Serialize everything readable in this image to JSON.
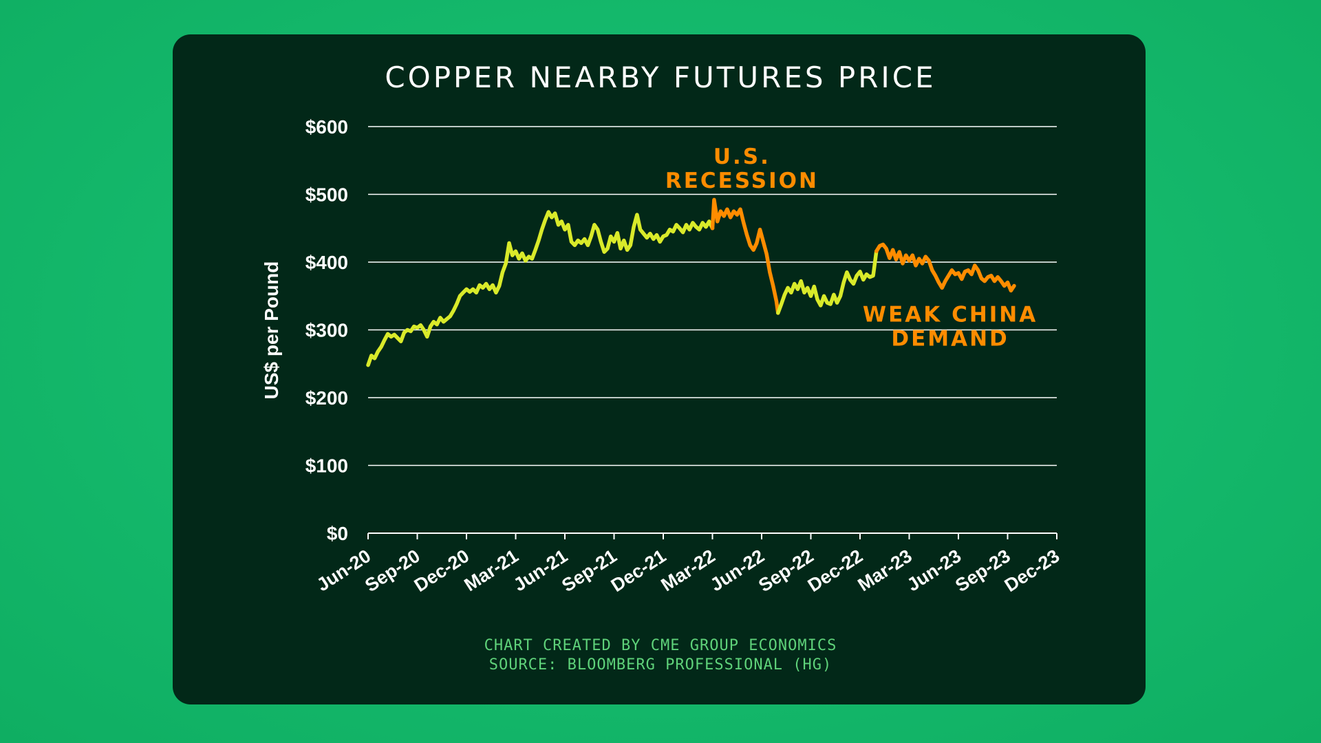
{
  "colors": {
    "background": "#14b86b",
    "panel": "#022818",
    "grid": "#ffffff",
    "text": "#ffffff",
    "rise_line": "#d9ea2a",
    "decline_line": "#ff8c00",
    "annotation": "#ff8c00",
    "credits": "#5fd27a"
  },
  "credits": {
    "line1": "CHART CREATED BY CME GROUP ECONOMICS",
    "line2": "SOURCE: BLOOMBERG PROFESSIONAL (HG)"
  },
  "chart_data": {
    "type": "line",
    "title": "COPPER NEARBY FUTURES PRICE",
    "xlabel": "",
    "ylabel": "US$ per Pound",
    "ylim": [
      0,
      600
    ],
    "yticks": [
      0,
      100,
      200,
      300,
      400,
      500,
      600
    ],
    "ytick_labels": [
      "$0",
      "$100",
      "$200",
      "$300",
      "$400",
      "$500",
      "$600"
    ],
    "xlim": [
      0,
      42
    ],
    "xticks": [
      0,
      3,
      6,
      9,
      12,
      15,
      18,
      21,
      24,
      27,
      30,
      33,
      36,
      39,
      42
    ],
    "xtick_labels": [
      "Jun-20",
      "Sep-20",
      "Dec-20",
      "Mar-21",
      "Jun-21",
      "Sep-21",
      "Dec-21",
      "Mar-22",
      "Jun-22",
      "Sep-22",
      "Dec-22",
      "Mar-23",
      "Jun-23",
      "Sep-23",
      "Dec-23"
    ],
    "grid": true,
    "legend": "none",
    "series": [
      {
        "points": [
          [
            0.0,
            248
          ],
          [
            0.2,
            262
          ],
          [
            0.4,
            258
          ],
          [
            0.6,
            268
          ],
          [
            0.8,
            275
          ],
          [
            1.0,
            285
          ],
          [
            1.2,
            294
          ],
          [
            1.4,
            290
          ],
          [
            1.6,
            293
          ],
          [
            1.8,
            288
          ],
          [
            2.0,
            283
          ],
          [
            2.2,
            296
          ],
          [
            2.4,
            300
          ],
          [
            2.6,
            298
          ],
          [
            2.8,
            305
          ],
          [
            3.0,
            303
          ],
          [
            3.2,
            307
          ],
          [
            3.4,
            300
          ],
          [
            3.6,
            290
          ],
          [
            3.8,
            305
          ],
          [
            4.0,
            312
          ],
          [
            4.2,
            308
          ],
          [
            4.4,
            318
          ],
          [
            4.6,
            312
          ],
          [
            4.8,
            316
          ],
          [
            5.0,
            320
          ],
          [
            5.2,
            328
          ],
          [
            5.4,
            338
          ],
          [
            5.6,
            350
          ],
          [
            5.8,
            355
          ],
          [
            6.0,
            360
          ],
          [
            6.2,
            356
          ],
          [
            6.4,
            360
          ],
          [
            6.6,
            355
          ],
          [
            6.8,
            366
          ],
          [
            7.0,
            362
          ],
          [
            7.2,
            368
          ],
          [
            7.4,
            360
          ],
          [
            7.6,
            366
          ],
          [
            7.8,
            355
          ],
          [
            8.0,
            365
          ],
          [
            8.2,
            385
          ],
          [
            8.4,
            398
          ],
          [
            8.6,
            428
          ],
          [
            8.8,
            410
          ],
          [
            9.0,
            416
          ],
          [
            9.2,
            405
          ],
          [
            9.4,
            413
          ],
          [
            9.6,
            402
          ],
          [
            9.8,
            408
          ],
          [
            10.0,
            405
          ],
          [
            10.2,
            418
          ],
          [
            10.4,
            432
          ],
          [
            10.6,
            448
          ],
          [
            10.8,
            462
          ],
          [
            11.0,
            474
          ],
          [
            11.2,
            466
          ],
          [
            11.4,
            472
          ],
          [
            11.6,
            455
          ],
          [
            11.8,
            460
          ],
          [
            12.0,
            448
          ],
          [
            12.2,
            455
          ],
          [
            12.4,
            430
          ],
          [
            12.6,
            425
          ],
          [
            12.8,
            432
          ],
          [
            13.0,
            428
          ],
          [
            13.2,
            434
          ],
          [
            13.4,
            425
          ],
          [
            13.6,
            438
          ],
          [
            13.8,
            455
          ],
          [
            14.0,
            448
          ],
          [
            14.2,
            430
          ],
          [
            14.4,
            415
          ],
          [
            14.6,
            420
          ],
          [
            14.8,
            438
          ],
          [
            15.0,
            430
          ],
          [
            15.2,
            443
          ],
          [
            15.4,
            420
          ],
          [
            15.6,
            432
          ],
          [
            15.8,
            418
          ],
          [
            16.0,
            425
          ],
          [
            16.2,
            452
          ],
          [
            16.4,
            470
          ],
          [
            16.6,
            448
          ],
          [
            16.8,
            442
          ],
          [
            17.0,
            436
          ],
          [
            17.2,
            442
          ],
          [
            17.4,
            434
          ],
          [
            17.6,
            440
          ],
          [
            17.8,
            430
          ],
          [
            18.0,
            438
          ],
          [
            18.2,
            440
          ],
          [
            18.4,
            448
          ],
          [
            18.6,
            445
          ],
          [
            18.8,
            455
          ],
          [
            19.0,
            450
          ],
          [
            19.2,
            444
          ],
          [
            19.4,
            455
          ],
          [
            19.6,
            448
          ],
          [
            19.8,
            458
          ],
          [
            20.0,
            452
          ],
          [
            20.2,
            448
          ],
          [
            20.4,
            458
          ],
          [
            20.6,
            452
          ],
          [
            20.8,
            460
          ],
          [
            21.0,
            450
          ]
        ],
        "color": "#d9ea2a"
      },
      {
        "points": [
          [
            21.0,
            450
          ],
          [
            21.1,
            492
          ],
          [
            21.3,
            460
          ],
          [
            21.5,
            475
          ],
          [
            21.7,
            468
          ],
          [
            21.9,
            478
          ],
          [
            22.1,
            466
          ],
          [
            22.3,
            475
          ],
          [
            22.5,
            470
          ],
          [
            22.7,
            478
          ],
          [
            22.9,
            458
          ],
          [
            23.1,
            440
          ],
          [
            23.3,
            425
          ],
          [
            23.5,
            418
          ],
          [
            23.7,
            428
          ],
          [
            23.9,
            448
          ],
          [
            24.1,
            430
          ],
          [
            24.3,
            412
          ],
          [
            24.5,
            385
          ],
          [
            24.7,
            365
          ],
          [
            24.9,
            342
          ],
          [
            25.0,
            325
          ]
        ],
        "color": "#ff8c00"
      },
      {
        "points": [
          [
            25.0,
            325
          ],
          [
            25.2,
            338
          ],
          [
            25.4,
            352
          ],
          [
            25.6,
            362
          ],
          [
            25.8,
            355
          ],
          [
            26.0,
            368
          ],
          [
            26.2,
            360
          ],
          [
            26.4,
            372
          ],
          [
            26.6,
            355
          ],
          [
            26.8,
            362
          ],
          [
            27.0,
            350
          ],
          [
            27.2,
            364
          ],
          [
            27.4,
            345
          ],
          [
            27.6,
            336
          ],
          [
            27.8,
            350
          ],
          [
            28.0,
            340
          ],
          [
            28.2,
            338
          ],
          [
            28.4,
            352
          ],
          [
            28.6,
            340
          ],
          [
            28.8,
            350
          ],
          [
            29.0,
            370
          ],
          [
            29.2,
            385
          ],
          [
            29.4,
            374
          ],
          [
            29.6,
            368
          ],
          [
            29.8,
            380
          ],
          [
            30.0,
            386
          ],
          [
            30.2,
            374
          ],
          [
            30.4,
            382
          ],
          [
            30.6,
            378
          ],
          [
            30.8,
            380
          ],
          [
            31.0,
            416
          ]
        ],
        "color": "#d9ea2a"
      },
      {
        "points": [
          [
            31.0,
            416
          ],
          [
            31.2,
            424
          ],
          [
            31.4,
            426
          ],
          [
            31.6,
            420
          ],
          [
            31.8,
            406
          ],
          [
            32.0,
            418
          ],
          [
            32.2,
            404
          ],
          [
            32.4,
            415
          ],
          [
            32.6,
            398
          ],
          [
            32.8,
            410
          ],
          [
            33.0,
            402
          ],
          [
            33.2,
            410
          ],
          [
            33.4,
            395
          ],
          [
            33.6,
            405
          ],
          [
            33.8,
            398
          ],
          [
            34.0,
            408
          ],
          [
            34.2,
            402
          ],
          [
            34.4,
            388
          ],
          [
            34.6,
            380
          ],
          [
            34.8,
            370
          ],
          [
            35.0,
            362
          ],
          [
            35.2,
            372
          ],
          [
            35.4,
            380
          ],
          [
            35.6,
            388
          ],
          [
            35.8,
            382
          ],
          [
            36.0,
            384
          ],
          [
            36.2,
            375
          ],
          [
            36.4,
            386
          ],
          [
            36.6,
            388
          ],
          [
            36.8,
            382
          ],
          [
            37.0,
            395
          ],
          [
            37.2,
            388
          ],
          [
            37.4,
            376
          ],
          [
            37.6,
            372
          ],
          [
            37.8,
            378
          ],
          [
            38.0,
            380
          ],
          [
            38.2,
            372
          ],
          [
            38.4,
            378
          ],
          [
            38.6,
            372
          ],
          [
            38.8,
            365
          ],
          [
            39.0,
            370
          ],
          [
            39.2,
            358
          ],
          [
            39.4,
            365
          ]
        ],
        "color": "#ff8c00"
      }
    ],
    "annotations": [
      {
        "lines": [
          "U.S.",
          "RECESSION"
        ],
        "x": 22.8,
        "y": 545
      },
      {
        "lines": [
          "WEAK CHINA",
          "DEMAND"
        ],
        "x": 35.5,
        "y": 312
      }
    ]
  }
}
